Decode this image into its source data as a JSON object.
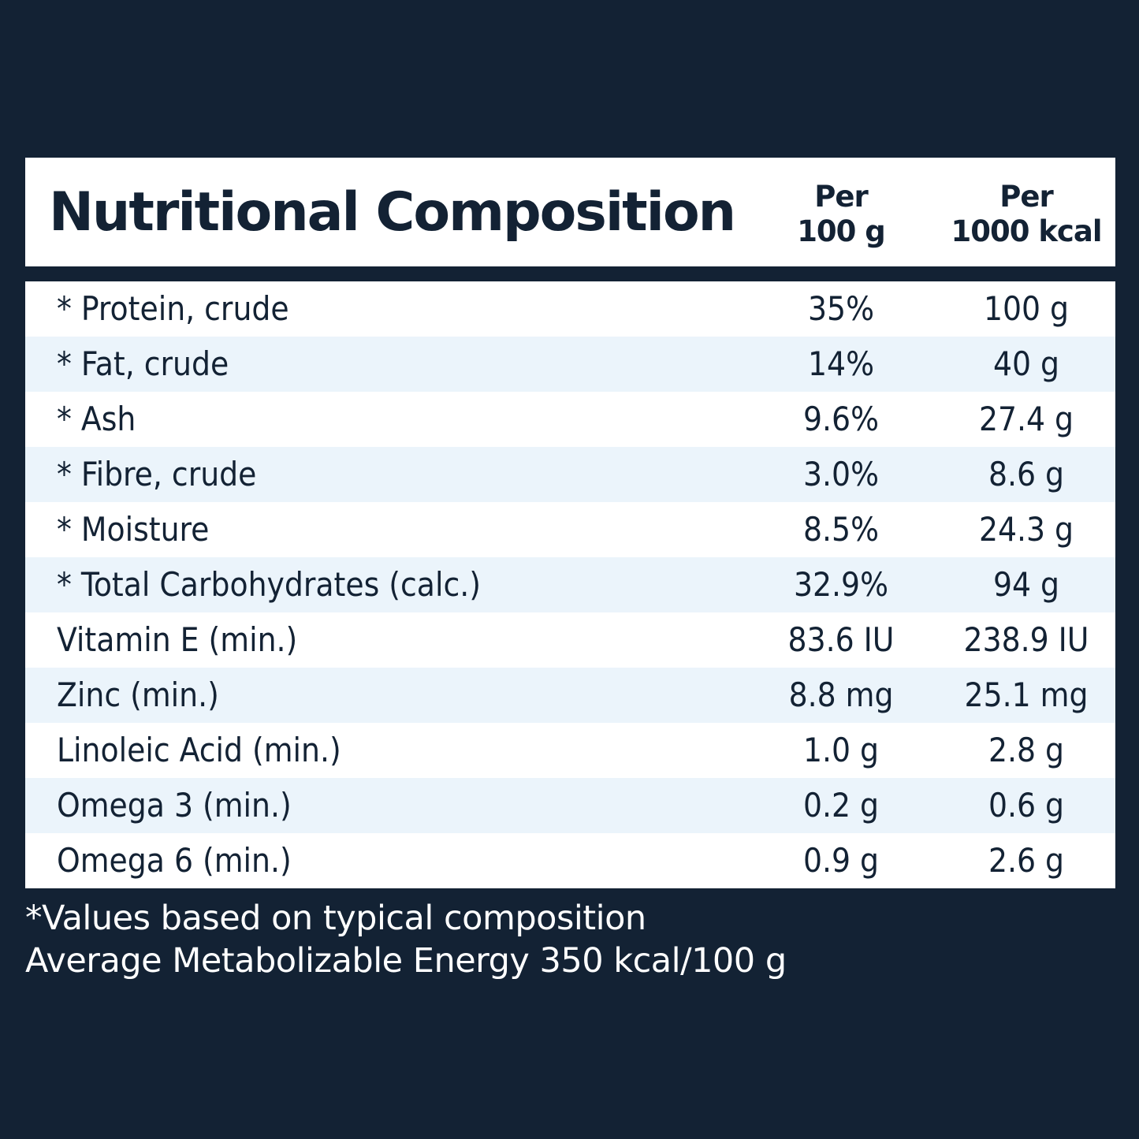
{
  "header": {
    "title": "Nutritional Composition",
    "col1_line1": "Per",
    "col1_line2": "100 g",
    "col2_line1": "Per",
    "col2_line2": "1000 kcal"
  },
  "rows": [
    {
      "name": "* Protein, crude",
      "per100g": "35%",
      "per1000kcal": "100 g"
    },
    {
      "name": "* Fat, crude",
      "per100g": "14%",
      "per1000kcal": "40 g"
    },
    {
      "name": "* Ash",
      "per100g": "9.6%",
      "per1000kcal": "27.4 g"
    },
    {
      "name": "* Fibre, crude",
      "per100g": "3.0%",
      "per1000kcal": "8.6 g"
    },
    {
      "name": "* Moisture",
      "per100g": "8.5%",
      "per1000kcal": "24.3 g"
    },
    {
      "name": "* Total Carbohydrates (calc.)",
      "per100g": "32.9%",
      "per1000kcal": "94 g"
    },
    {
      "name": "Vitamin E (min.)",
      "per100g": "83.6 IU",
      "per1000kcal": "238.9 IU"
    },
    {
      "name": "Zinc (min.)",
      "per100g": "8.8 mg",
      "per1000kcal": "25.1 mg"
    },
    {
      "name": "Linoleic Acid (min.)",
      "per100g": "1.0 g",
      "per1000kcal": "2.8 g"
    },
    {
      "name": "Omega 3 (min.)",
      "per100g": "0.2 g",
      "per1000kcal": "0.6 g"
    },
    {
      "name": "Omega 6 (min.)",
      "per100g": "0.9 g",
      "per1000kcal": "2.6 g"
    }
  ],
  "footer": {
    "line1": "*Values based on typical composition",
    "line2": "Average Metabolizable Energy 350 kcal/100 g"
  },
  "colors": {
    "background": "#132234",
    "row_alt": "#ebf4fb",
    "text": "#132234"
  }
}
